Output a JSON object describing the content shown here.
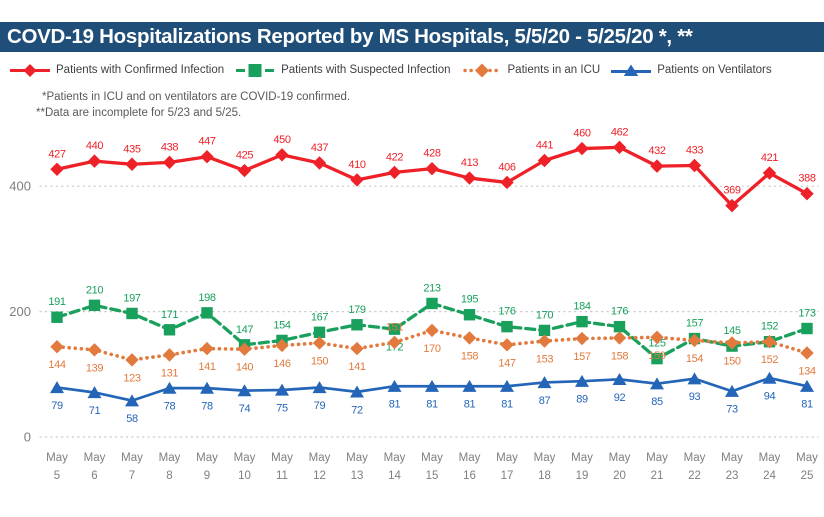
{
  "title": "COVD-19 Hospitalizations Reported by MS Hospitals, 5/5/20 - 5/25/20 *, **",
  "footnotes": [
    "*Patients in ICU and on ventilators are COVID-19 confirmed.",
    "**Data are incomplete for 5/23 and 5/25."
  ],
  "colors": {
    "title_bar": "#1F4E79",
    "title_text": "#FFFFFF",
    "axis_text": "#7F7F7F",
    "gridline": "#C9C9C9",
    "legend_text": "#404040",
    "footnote_text": "#595959",
    "confirmed_red": "#EE2128",
    "suspected_green": "#18A05C",
    "icu_orange": "#E2793D",
    "ventilators_blue": "#2465B8"
  },
  "chart_data": {
    "type": "line",
    "title": "COVD-19 Hospitalizations Reported by MS Hospitals, 5/5/20 - 5/25/20 *, **",
    "categories": [
      "May 5",
      "May 6",
      "May 7",
      "May 8",
      "May 9",
      "May 10",
      "May 11",
      "May 12",
      "May 13",
      "May 14",
      "May 15",
      "May 16",
      "May 17",
      "May 18",
      "May 19",
      "May 20",
      "May 21",
      "May 22",
      "May 23",
      "May 24",
      "May 25"
    ],
    "series": [
      {
        "name": "Patients with Confirmed Infection",
        "slug": "confirmed",
        "color": "#EE2128",
        "marker": "diamond",
        "line_style": "solid",
        "label_position": "above",
        "values": [
          427,
          440,
          435,
          438,
          447,
          425,
          450,
          437,
          410,
          422,
          428,
          413,
          406,
          441,
          460,
          462,
          432,
          433,
          369,
          421,
          388
        ]
      },
      {
        "name": "Patients with Suspected Infection",
        "slug": "suspected",
        "color": "#18A05C",
        "marker": "square",
        "line_style": "dashed",
        "label_position": "above",
        "label_position_overrides": {
          "9": "below"
        },
        "values": [
          191,
          210,
          197,
          171,
          198,
          147,
          154,
          167,
          179,
          172,
          213,
          195,
          176,
          170,
          184,
          176,
          125,
          157,
          145,
          152,
          173
        ]
      },
      {
        "name": "Patients in an ICU",
        "slug": "icu",
        "color": "#E2793D",
        "marker": "diamond",
        "line_style": "dotted",
        "label_position": "below",
        "label_position_overrides": {
          "9": "above"
        },
        "values": [
          144,
          139,
          123,
          131,
          141,
          140,
          146,
          150,
          141,
          151,
          170,
          158,
          147,
          153,
          157,
          158,
          159,
          154,
          150,
          152,
          134
        ]
      },
      {
        "name": "Patients on Ventilators",
        "slug": "ventilators",
        "color": "#2465B8",
        "marker": "triangle",
        "line_style": "solid",
        "label_position": "below",
        "values": [
          79,
          71,
          58,
          78,
          78,
          74,
          75,
          79,
          72,
          81,
          81,
          81,
          81,
          87,
          89,
          92,
          85,
          93,
          73,
          94,
          81
        ]
      }
    ],
    "yticks": [
      0,
      200,
      400
    ],
    "ylim": [
      0,
      505
    ],
    "grid": "horizontal-dotted",
    "legend_position": "top",
    "data_labels": true
  }
}
